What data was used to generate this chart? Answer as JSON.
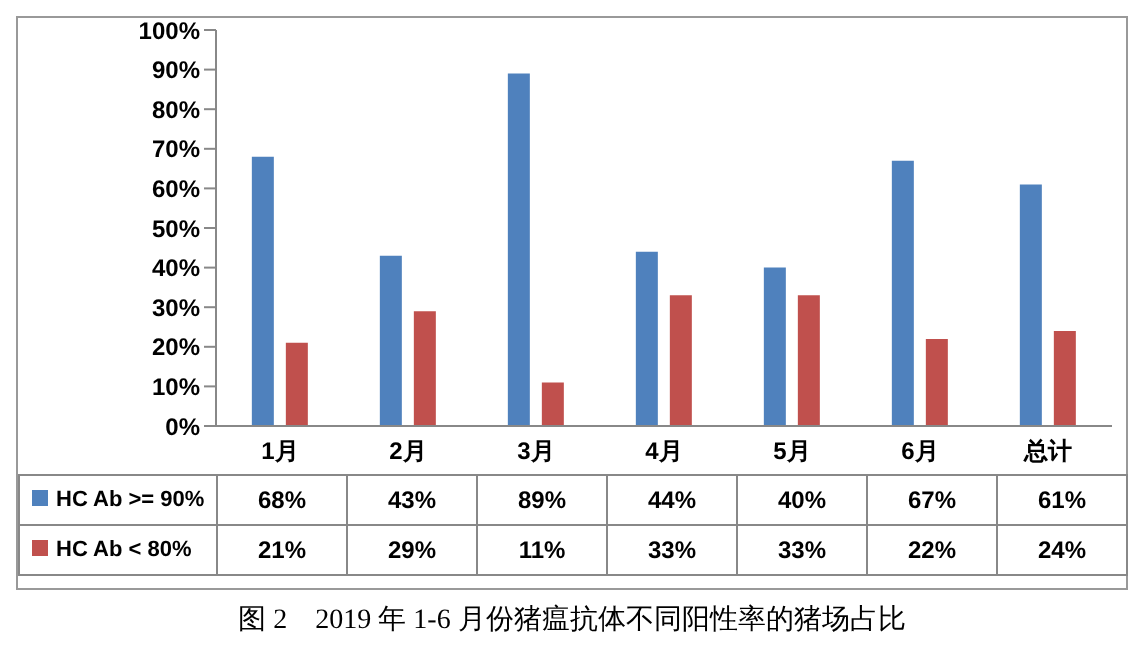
{
  "chart_data": {
    "type": "bar",
    "title": "图 2　2019 年 1-6 月份猪瘟抗体不同阳性率的猪场占比",
    "categories": [
      "1月",
      "2月",
      "3月",
      "4月",
      "5月",
      "6月",
      "总计"
    ],
    "series": [
      {
        "name": "HC Ab >= 90%",
        "color": "#4f81bd",
        "values": [
          68,
          43,
          89,
          44,
          40,
          67,
          61
        ],
        "value_labels": [
          "68%",
          "43%",
          "89%",
          "44%",
          "40%",
          "67%",
          "61%"
        ]
      },
      {
        "name": "HC Ab < 80%",
        "color": "#c0504d",
        "values": [
          21,
          29,
          11,
          33,
          33,
          22,
          24
        ],
        "value_labels": [
          "21%",
          "29%",
          "11%",
          "33%",
          "33%",
          "22%",
          "24%"
        ]
      }
    ],
    "ylim": [
      0,
      100
    ],
    "yticks": [
      {
        "value": 0,
        "label": "0%"
      },
      {
        "value": 10,
        "label": "10%"
      },
      {
        "value": 20,
        "label": "20%"
      },
      {
        "value": 30,
        "label": "30%"
      },
      {
        "value": 40,
        "label": "40%"
      },
      {
        "value": 50,
        "label": "50%"
      },
      {
        "value": 60,
        "label": "60%"
      },
      {
        "value": 70,
        "label": "70%"
      },
      {
        "value": 80,
        "label": "80%"
      },
      {
        "value": 90,
        "label": "90%"
      },
      {
        "value": 100,
        "label": "100%"
      }
    ],
    "grid": false,
    "legend": "bottom"
  }
}
